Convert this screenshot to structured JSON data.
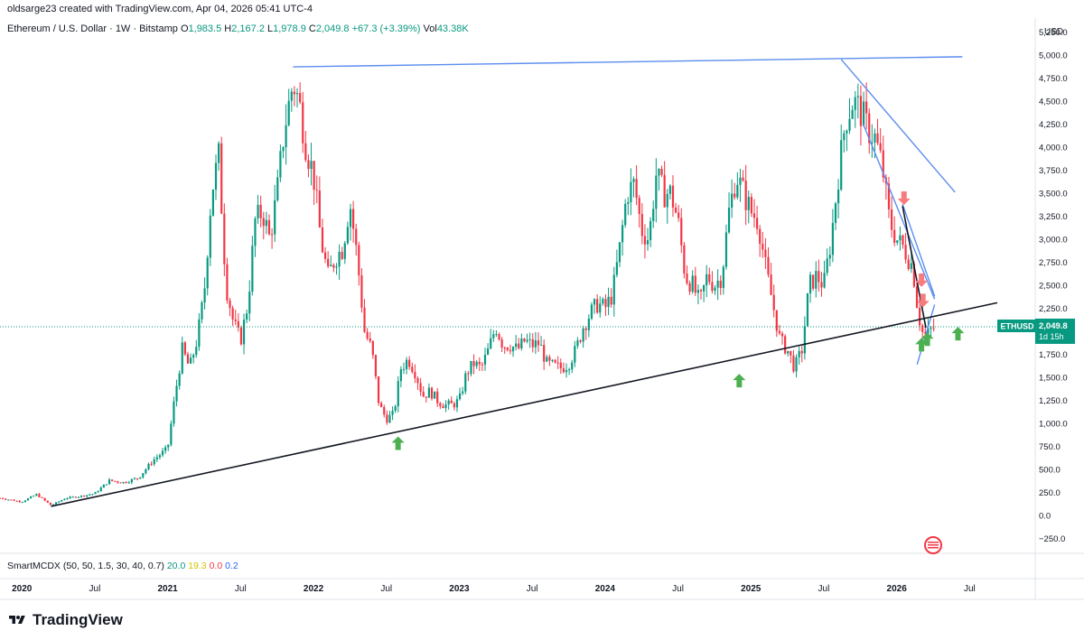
{
  "header": {
    "text": "oldsarge23 created with TradingView.com, Apr 04, 2026 05:41 UTC-4"
  },
  "legend": {
    "symbol": "Ethereum / U.S. Dollar · 1W · Bitstamp",
    "o_label": "O",
    "o": "1,983.5",
    "h_label": "H",
    "h": "2,167.2",
    "l_label": "L",
    "l": "1,978.9",
    "c_label": "C",
    "c": "2,049.8",
    "change": "+67.3 (+3.39%)",
    "vol_label": "Vol",
    "vol": "43.38K"
  },
  "indicator": {
    "name": "SmartMCDX (50, 50, 1.5, 30, 40, 0.7)",
    "v1": "20.0",
    "v2": "19.3",
    "v3": "0.0",
    "v4": "0.2"
  },
  "price_badge": {
    "ticker": "ETHUSD",
    "price": "2,049.8",
    "countdown": "1d 15h"
  },
  "footer": {
    "brand": "TradingView"
  },
  "colors": {
    "up": "#089981",
    "down": "#f23645",
    "trend_blue": "#5b8def",
    "trend_black": "#131722",
    "signal_green": "#4caf50",
    "signal_red": "#f77c80",
    "price_line": "#089981"
  },
  "chart_data": {
    "type": "candlestick",
    "title": "Ethereum / U.S. Dollar · 1W · Bitstamp",
    "currency": "USD",
    "ylim": [
      -400,
      5400
    ],
    "y_ticks": [
      -250,
      0,
      250,
      500,
      750,
      1000,
      1250,
      1500,
      1750,
      2000,
      2250,
      2500,
      2750,
      3000,
      3250,
      3500,
      3750,
      4000,
      4250,
      4500,
      4750,
      5000,
      5250
    ],
    "y_tick_labels": [
      "−250.0",
      "0.0",
      "250.0",
      "500.0",
      "750.0",
      "1,000.0",
      "1,250.0",
      "1,500.0",
      "1,750.0",
      "2,000.0",
      "2,250.0",
      "2,500.0",
      "2,750.0",
      "3,000.0",
      "3,250.0",
      "3,500.0",
      "3,750.0",
      "4,000.0",
      "4,250.0",
      "4,500.0",
      "4,750.0",
      "5,000.0",
      "5,250.0"
    ],
    "x_ticks": [
      {
        "t": 2020.0,
        "label": "2020",
        "bold": true
      },
      {
        "t": 2020.5,
        "label": "Jul",
        "bold": false
      },
      {
        "t": 2021.0,
        "label": "2021",
        "bold": true
      },
      {
        "t": 2021.5,
        "label": "Jul",
        "bold": false
      },
      {
        "t": 2022.0,
        "label": "2022",
        "bold": true
      },
      {
        "t": 2022.5,
        "label": "Jul",
        "bold": false
      },
      {
        "t": 2023.0,
        "label": "2023",
        "bold": true
      },
      {
        "t": 2023.5,
        "label": "Jul",
        "bold": false
      },
      {
        "t": 2024.0,
        "label": "2024",
        "bold": true
      },
      {
        "t": 2024.5,
        "label": "Jul",
        "bold": false
      },
      {
        "t": 2025.0,
        "label": "2025",
        "bold": true
      },
      {
        "t": 2025.5,
        "label": "Jul",
        "bold": false
      },
      {
        "t": 2026.0,
        "label": "2026",
        "bold": true
      },
      {
        "t": 2026.5,
        "label": "Jul",
        "bold": false
      }
    ],
    "xlim": [
      2019.85,
      2026.95
    ],
    "last_price": 2049.8,
    "price_path": [
      [
        2019.85,
        190
      ],
      [
        2020.0,
        150
      ],
      [
        2020.1,
        230
      ],
      [
        2020.2,
        110
      ],
      [
        2020.3,
        190
      ],
      [
        2020.4,
        210
      ],
      [
        2020.5,
        240
      ],
      [
        2020.6,
        380
      ],
      [
        2020.7,
        360
      ],
      [
        2020.8,
        410
      ],
      [
        2020.9,
        600
      ],
      [
        2021.0,
        730
      ],
      [
        2021.05,
        1300
      ],
      [
        2021.1,
        1800
      ],
      [
        2021.15,
        1600
      ],
      [
        2021.2,
        1900
      ],
      [
        2021.25,
        2400
      ],
      [
        2021.3,
        3500
      ],
      [
        2021.35,
        3900
      ],
      [
        2021.4,
        2500
      ],
      [
        2021.45,
        2100
      ],
      [
        2021.5,
        1900
      ],
      [
        2021.55,
        2300
      ],
      [
        2021.6,
        3200
      ],
      [
        2021.65,
        3300
      ],
      [
        2021.7,
        3000
      ],
      [
        2021.75,
        3500
      ],
      [
        2021.8,
        4200
      ],
      [
        2021.86,
        4700
      ],
      [
        2021.9,
        4500
      ],
      [
        2021.95,
        4000
      ],
      [
        2022.0,
        3700
      ],
      [
        2022.05,
        3000
      ],
      [
        2022.1,
        2600
      ],
      [
        2022.15,
        2800
      ],
      [
        2022.2,
        2900
      ],
      [
        2022.25,
        3400
      ],
      [
        2022.3,
        2800
      ],
      [
        2022.35,
        2000
      ],
      [
        2022.4,
        1800
      ],
      [
        2022.45,
        1200
      ],
      [
        2022.5,
        1050
      ],
      [
        2022.55,
        1100
      ],
      [
        2022.6,
        1600
      ],
      [
        2022.65,
        1700
      ],
      [
        2022.7,
        1550
      ],
      [
        2022.75,
        1300
      ],
      [
        2022.8,
        1350
      ],
      [
        2022.85,
        1250
      ],
      [
        2022.9,
        1200
      ],
      [
        2022.95,
        1200
      ],
      [
        2023.0,
        1250
      ],
      [
        2023.05,
        1550
      ],
      [
        2023.1,
        1650
      ],
      [
        2023.15,
        1600
      ],
      [
        2023.2,
        1800
      ],
      [
        2023.25,
        2050
      ],
      [
        2023.3,
        1850
      ],
      [
        2023.35,
        1850
      ],
      [
        2023.4,
        1800
      ],
      [
        2023.45,
        1900
      ],
      [
        2023.5,
        1850
      ],
      [
        2023.55,
        1870
      ],
      [
        2023.6,
        1650
      ],
      [
        2023.65,
        1620
      ],
      [
        2023.7,
        1600
      ],
      [
        2023.75,
        1650
      ],
      [
        2023.8,
        1800
      ],
      [
        2023.85,
        2050
      ],
      [
        2023.9,
        2200
      ],
      [
        2023.95,
        2300
      ],
      [
        2024.0,
        2250
      ],
      [
        2024.05,
        2400
      ],
      [
        2024.1,
        2900
      ],
      [
        2024.15,
        3500
      ],
      [
        2024.2,
        3600
      ],
      [
        2024.25,
        3100
      ],
      [
        2024.3,
        3000
      ],
      [
        2024.35,
        3700
      ],
      [
        2024.4,
        3500
      ],
      [
        2024.45,
        3500
      ],
      [
        2024.5,
        3200
      ],
      [
        2024.55,
        2600
      ],
      [
        2024.6,
        2500
      ],
      [
        2024.65,
        2300
      ],
      [
        2024.7,
        2600
      ],
      [
        2024.75,
        2500
      ],
      [
        2024.8,
        2600
      ],
      [
        2024.85,
        3300
      ],
      [
        2024.9,
        3700
      ],
      [
        2024.95,
        3500
      ],
      [
        2025.0,
        3300
      ],
      [
        2025.05,
        3200
      ],
      [
        2025.1,
        2700
      ],
      [
        2025.15,
        2300
      ],
      [
        2025.2,
        1900
      ],
      [
        2025.25,
        1800
      ],
      [
        2025.3,
        1600
      ],
      [
        2025.35,
        1800
      ],
      [
        2025.4,
        2500
      ],
      [
        2025.45,
        2600
      ],
      [
        2025.5,
        2500
      ],
      [
        2025.55,
        3000
      ],
      [
        2025.6,
        3700
      ],
      [
        2025.65,
        4300
      ],
      [
        2025.7,
        4500
      ],
      [
        2025.75,
        4400
      ],
      [
        2025.8,
        4200
      ],
      [
        2025.85,
        4100
      ],
      [
        2025.9,
        3800
      ],
      [
        2025.95,
        3200
      ],
      [
        2026.0,
        3000
      ],
      [
        2026.05,
        2900
      ],
      [
        2026.08,
        2800
      ],
      [
        2026.11,
        2700
      ],
      [
        2026.14,
        2300
      ],
      [
        2026.17,
        2000
      ],
      [
        2026.2,
        1950
      ],
      [
        2026.23,
        2000
      ],
      [
        2026.26,
        2049.8
      ]
    ],
    "trend_lines": [
      {
        "name": "ath-resistance-line",
        "color": "blue",
        "points": [
          [
            2021.86,
            4870
          ],
          [
            2026.45,
            4980
          ]
        ]
      },
      {
        "name": "ath-descending-line",
        "color": "blue",
        "points": [
          [
            2025.62,
            4950
          ],
          [
            2026.4,
            3510
          ]
        ]
      },
      {
        "name": "wedge-upper-line",
        "color": "blue",
        "points": [
          [
            2025.77,
            4250
          ],
          [
            2026.26,
            2350
          ]
        ]
      },
      {
        "name": "wedge-upper-line-2",
        "color": "blue",
        "points": [
          [
            2026.04,
            3380
          ],
          [
            2026.26,
            2380
          ]
        ]
      },
      {
        "name": "wedge-lower-line",
        "color": "blue",
        "points": [
          [
            2026.14,
            1640
          ],
          [
            2026.26,
            2290
          ]
        ]
      },
      {
        "name": "long-term-support-line",
        "color": "black",
        "points": [
          [
            2020.2,
            100
          ],
          [
            2026.69,
            2310
          ]
        ]
      },
      {
        "name": "short-descending-line",
        "color": "black",
        "points": [
          [
            2026.04,
            3360
          ],
          [
            2026.2,
            2040
          ]
        ]
      }
    ],
    "signals": [
      {
        "type": "buy",
        "t": 2022.58,
        "price": 780
      },
      {
        "type": "buy",
        "t": 2024.92,
        "price": 1460
      },
      {
        "type": "sell",
        "t": 2026.05,
        "price": 3450
      },
      {
        "type": "sell",
        "t": 2026.17,
        "price": 2560
      },
      {
        "type": "sell",
        "t": 2026.18,
        "price": 2340
      },
      {
        "type": "buy",
        "t": 2026.17,
        "price": 1850
      },
      {
        "type": "buy",
        "t": 2026.21,
        "price": 1910
      },
      {
        "type": "buy",
        "t": 2026.42,
        "price": 1970
      }
    ]
  }
}
